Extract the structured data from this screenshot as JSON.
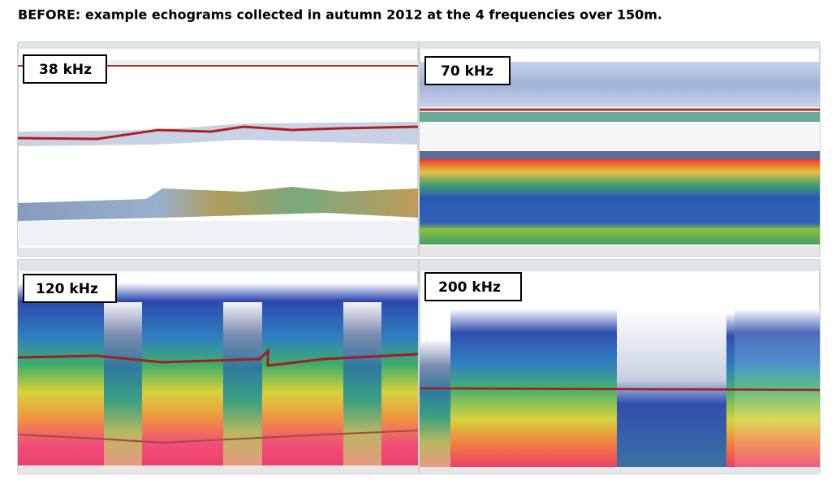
{
  "title": "BEFORE: example echograms collected in autumn 2012 at the 4 frequencies over 150m.",
  "panels": [
    {
      "label": "38 kHz"
    },
    {
      "label": "70 kHz"
    },
    {
      "label": "120 kHz"
    },
    {
      "label": "200 kHz"
    }
  ]
}
